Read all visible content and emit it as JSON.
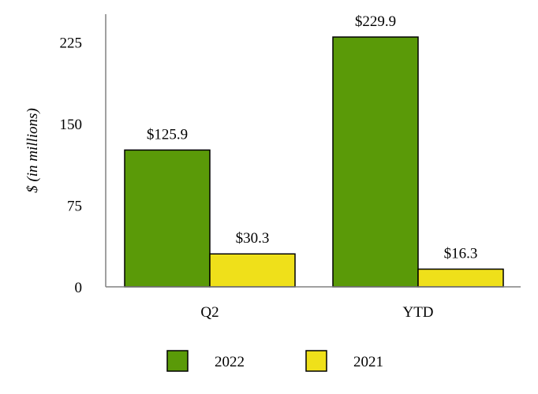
{
  "chart_data": {
    "type": "bar",
    "ylabel": "$ (in millions)",
    "categories": [
      "Q2",
      "YTD"
    ],
    "ylim": [
      0,
      250
    ],
    "yticks": [
      "0",
      "75",
      "150",
      "225"
    ],
    "grid": false,
    "legend_position": "bottom",
    "series": [
      {
        "name": "2022",
        "values": [
          125.9,
          229.9
        ],
        "labels": [
          "$125.9",
          "$229.9"
        ],
        "color": "#5a9a08"
      },
      {
        "name": "2021",
        "values": [
          30.3,
          16.3
        ],
        "labels": [
          "$30.3",
          "$16.3"
        ],
        "color": "#efe01a"
      }
    ]
  }
}
